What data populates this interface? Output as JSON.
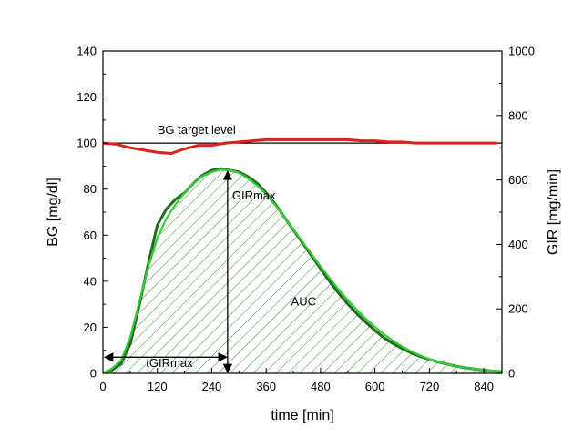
{
  "chart_data": {
    "type": "line",
    "title": "",
    "xlabel": "time [min]",
    "ylabel_left": "BG [mg/dl]",
    "ylabel_right": "GIR [mg/min]",
    "xlim": [
      0,
      880
    ],
    "ylim_left": [
      0,
      140
    ],
    "ylim_right": [
      0,
      1000
    ],
    "x_ticks": [
      0,
      120,
      240,
      360,
      480,
      600,
      720,
      840
    ],
    "y_ticks_left": [
      0,
      20,
      40,
      60,
      80,
      100,
      120,
      140
    ],
    "y_ticks_right": [
      0,
      200,
      400,
      600,
      800,
      1000
    ],
    "grid": false,
    "colors": {
      "bg_series": "#e0201c",
      "gir_raw": "#1e6b1e",
      "gir_fit": "#33cc33",
      "hatch": "#2e8b2e",
      "target": "#000000"
    },
    "series": [
      {
        "axis": "left",
        "color": "#e0201c",
        "x": [
          0,
          30,
          60,
          90,
          120,
          150,
          180,
          210,
          240,
          270,
          300,
          330,
          360,
          390,
          420,
          450,
          480,
          510,
          540,
          570,
          600,
          630,
          660,
          690,
          720,
          750,
          780,
          810,
          840,
          870
        ],
        "y": [
          100,
          99.5,
          98,
          97,
          96,
          95.5,
          97.5,
          99,
          99,
          100,
          100.5,
          101,
          101.5,
          101.5,
          101.5,
          101.5,
          101.5,
          101.5,
          101.5,
          101,
          101,
          100.5,
          100.5,
          100,
          100,
          100,
          100,
          100,
          100,
          100
        ]
      },
      {
        "axis": "right",
        "color": "#1e6b1e",
        "x": [
          0,
          20,
          40,
          60,
          80,
          100,
          120,
          140,
          160,
          180,
          200,
          220,
          240,
          260,
          280,
          300,
          320,
          340,
          360,
          380,
          400,
          420,
          440,
          460,
          480,
          500,
          520,
          540,
          560,
          580,
          600,
          620,
          640,
          660,
          680,
          700,
          720,
          740,
          760,
          780,
          800,
          820,
          840,
          860,
          880
        ],
        "y": [
          0,
          10,
          30,
          90,
          210,
          340,
          460,
          510,
          540,
          560,
          590,
          615,
          630,
          635,
          630,
          625,
          610,
          590,
          560,
          525,
          485,
          445,
          405,
          365,
          325,
          285,
          248,
          215,
          185,
          158,
          133,
          110,
          92,
          77,
          63,
          52,
          43,
          35,
          28,
          22,
          17,
          13,
          10,
          7,
          5
        ]
      },
      {
        "axis": "right",
        "color": "#33cc33",
        "x": [
          0,
          20,
          40,
          60,
          80,
          100,
          120,
          140,
          160,
          180,
          200,
          220,
          240,
          260,
          280,
          300,
          320,
          340,
          360,
          380,
          400,
          420,
          440,
          460,
          480,
          500,
          520,
          540,
          560,
          580,
          600,
          620,
          640,
          660,
          680,
          700,
          720,
          740,
          760,
          780,
          800,
          820,
          840,
          860,
          880
        ],
        "y": [
          0,
          15,
          40,
          110,
          220,
          330,
          420,
          480,
          525,
          560,
          590,
          612,
          625,
          632,
          630,
          622,
          605,
          583,
          555,
          522,
          485,
          447,
          408,
          370,
          332,
          295,
          260,
          227,
          197,
          169,
          144,
          121,
          101,
          83,
          68,
          55,
          44,
          35,
          28,
          22,
          17,
          13,
          10,
          7,
          5
        ]
      }
    ],
    "target_level": 100,
    "annotations": [
      {
        "text": "BG target level",
        "x": 120,
        "y": 104,
        "axis": "left"
      },
      {
        "text": "GIRmax",
        "x": 285,
        "y": 540,
        "axis": "right"
      },
      {
        "text": "AUC",
        "x": 415,
        "y": 210,
        "axis": "right"
      },
      {
        "text": "tGIRmax",
        "x": 95,
        "y": 20,
        "axis": "right"
      }
    ],
    "markers": {
      "gir_max_time": 275,
      "gir_max_value": 632
    }
  }
}
